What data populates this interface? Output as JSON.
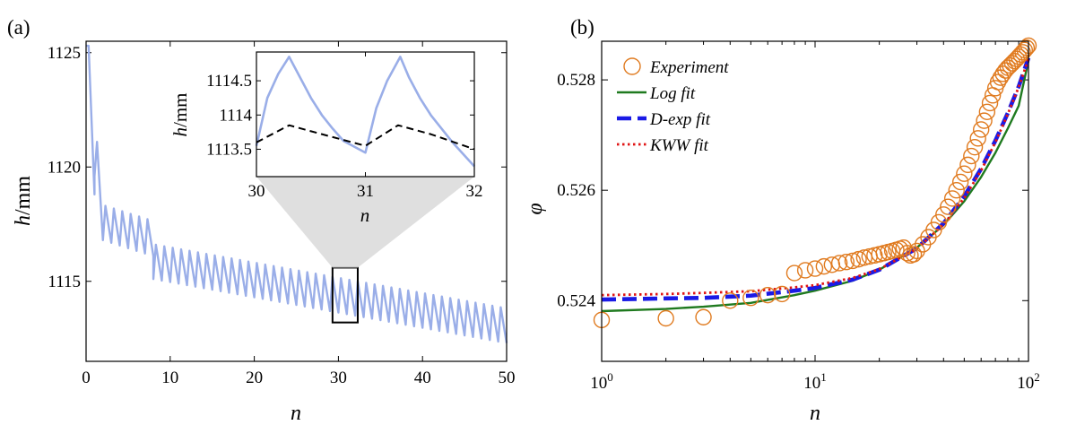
{
  "chart_data": [
    {
      "id": "a",
      "type": "line",
      "panel_label": "(a)",
      "xlabel": "n",
      "ylabel_var": "h",
      "ylabel_unit": "/mm",
      "xlim": [
        0,
        50
      ],
      "ylim": [
        1111.5,
        1125.5
      ],
      "xticks": [
        0,
        10,
        20,
        30,
        40,
        50
      ],
      "xtick_labels": [
        "0",
        "10",
        "20",
        "30",
        "40",
        "50"
      ],
      "yticks": [
        1115,
        1120,
        1125
      ],
      "ytick_labels": [
        "1115",
        "1120",
        "1125"
      ],
      "series": [
        {
          "name": "h",
          "color": "#9aaee8",
          "segments": [
            {
              "n_start": 0,
              "n_end": 1,
              "h_start": 1125.3,
              "h_end": 1118.8
            },
            {
              "n_start": 1,
              "n_end": 2,
              "h_start": 1119.6,
              "h_end": 1116.8
            },
            {
              "n_start": 2,
              "n_end": 8,
              "h_start": 1116.8,
              "h_end": 1116.1
            },
            {
              "n_start": 8,
              "n_end": 50,
              "h_start": 1115.1,
              "h_end": 1112.3
            }
          ],
          "oscillation_amplitude": 1.5,
          "oscillation_period": 1
        }
      ],
      "highlight_box": {
        "x": [
          29.3,
          32.3
        ],
        "y": [
          1113.2,
          1115.6
        ]
      },
      "inset": {
        "xlim": [
          30,
          32
        ],
        "ylim": [
          1113.1,
          1114.92
        ],
        "xticks": [
          30,
          31,
          32
        ],
        "xtick_labels": [
          "30",
          "31",
          "32"
        ],
        "yticks": [
          1113.5,
          1114,
          1114.5
        ],
        "ytick_labels": [
          "1113.5",
          "1114",
          "1114.5"
        ],
        "xlabel": "n",
        "ylabel_var": "h",
        "ylabel_unit": "/mm",
        "series": [
          {
            "name": "h",
            "color": "#9aaee8",
            "style": "solid",
            "points": [
              [
                30,
                1113.55
              ],
              [
                30.1,
                1114.25
              ],
              [
                30.2,
                1114.6
              ],
              [
                30.3,
                1114.85
              ],
              [
                30.4,
                1114.55
              ],
              [
                30.5,
                1114.25
              ],
              [
                30.6,
                1114.0
              ],
              [
                30.7,
                1113.8
              ],
              [
                30.8,
                1113.62
              ],
              [
                31.0,
                1113.45
              ],
              [
                31.1,
                1114.1
              ],
              [
                31.2,
                1114.5
              ],
              [
                31.32,
                1114.85
              ],
              [
                31.4,
                1114.55
              ],
              [
                31.5,
                1114.25
              ],
              [
                31.6,
                1114.0
              ],
              [
                31.7,
                1113.8
              ],
              [
                31.8,
                1113.6
              ],
              [
                32.0,
                1113.25
              ]
            ]
          },
          {
            "name": "mean",
            "color": "#000000",
            "style": "dashed",
            "points": [
              [
                30,
                1113.6
              ],
              [
                30.3,
                1113.85
              ],
              [
                30.6,
                1113.72
              ],
              [
                31.0,
                1113.55
              ],
              [
                31.3,
                1113.85
              ],
              [
                31.6,
                1113.72
              ],
              [
                32.0,
                1113.5
              ]
            ]
          }
        ]
      }
    },
    {
      "id": "b",
      "type": "scatter",
      "panel_label": "(b)",
      "xlabel": "n",
      "ylabel": "φ",
      "xscale": "log",
      "xlim": [
        1,
        100
      ],
      "ylim": [
        0.5229,
        0.5287
      ],
      "xticks": [
        1,
        10,
        100
      ],
      "xtick_labels": [
        {
          "base": "10",
          "exp": "0"
        },
        {
          "base": "10",
          "exp": "1"
        },
        {
          "base": "10",
          "exp": "2"
        }
      ],
      "yticks": [
        0.524,
        0.526,
        0.528
      ],
      "ytick_labels": [
        "0.524",
        "0.526",
        "0.528"
      ],
      "experiment": {
        "name": "Experiment",
        "color": "#e07b20",
        "n_min": 1,
        "n_max": 100,
        "points": [
          [
            1,
            0.52365
          ],
          [
            2,
            0.52368
          ],
          [
            3,
            0.5237
          ],
          [
            4,
            0.524
          ],
          [
            5,
            0.52405
          ],
          [
            6,
            0.5241
          ],
          [
            7,
            0.52412
          ],
          [
            8,
            0.5245
          ],
          [
            9,
            0.52455
          ],
          [
            10,
            0.52458
          ],
          [
            11,
            0.52462
          ],
          [
            12,
            0.52465
          ],
          [
            13,
            0.52468
          ],
          [
            14,
            0.5247
          ],
          [
            15,
            0.52472
          ],
          [
            16,
            0.52475
          ],
          [
            17,
            0.52478
          ],
          [
            18,
            0.5248
          ],
          [
            19,
            0.52482
          ],
          [
            20,
            0.52484
          ],
          [
            21,
            0.52486
          ],
          [
            22,
            0.52488
          ],
          [
            23,
            0.5249
          ],
          [
            24,
            0.52492
          ],
          [
            25,
            0.52494
          ],
          [
            26,
            0.52496
          ],
          [
            27,
            0.52486
          ],
          [
            28,
            0.52482
          ],
          [
            29,
            0.52484
          ],
          [
            30,
            0.5249
          ],
          [
            32,
            0.52502
          ],
          [
            34,
            0.52515
          ],
          [
            36,
            0.52528
          ],
          [
            38,
            0.52542
          ],
          [
            40,
            0.52556
          ],
          [
            42,
            0.5257
          ],
          [
            44,
            0.52585
          ],
          [
            46,
            0.526
          ],
          [
            48,
            0.52615
          ],
          [
            50,
            0.5263
          ],
          [
            52,
            0.52646
          ],
          [
            54,
            0.52662
          ],
          [
            56,
            0.52678
          ],
          [
            58,
            0.52694
          ],
          [
            60,
            0.5271
          ],
          [
            62,
            0.52726
          ],
          [
            64,
            0.52742
          ],
          [
            66,
            0.52758
          ],
          [
            68,
            0.52772
          ],
          [
            70,
            0.52785
          ],
          [
            72,
            0.52796
          ],
          [
            74,
            0.52804
          ],
          [
            76,
            0.52811
          ],
          [
            78,
            0.52817
          ],
          [
            80,
            0.52822
          ],
          [
            82,
            0.52826
          ],
          [
            84,
            0.5283
          ],
          [
            86,
            0.52834
          ],
          [
            88,
            0.52838
          ],
          [
            90,
            0.52842
          ],
          [
            92,
            0.52846
          ],
          [
            94,
            0.5285
          ],
          [
            96,
            0.52854
          ],
          [
            98,
            0.52858
          ],
          [
            100,
            0.52862
          ]
        ]
      },
      "fits": [
        {
          "name": "Log fit",
          "color": "#1f7a1f",
          "style": "solid",
          "points": [
            [
              1,
              0.52381
            ],
            [
              2,
              0.52385
            ],
            [
              3,
              0.52389
            ],
            [
              5,
              0.52396
            ],
            [
              8,
              0.5241
            ],
            [
              10,
              0.52418
            ],
            [
              15,
              0.52436
            ],
            [
              20,
              0.52456
            ],
            [
              30,
              0.52496
            ],
            [
              40,
              0.52537
            ],
            [
              50,
              0.5258
            ],
            [
              60,
              0.52624
            ],
            [
              70,
              0.52668
            ],
            [
              80,
              0.52712
            ],
            [
              90,
              0.52753
            ],
            [
              100,
              0.52835
            ]
          ]
        },
        {
          "name": "D-exp fit",
          "color": "#1a1ae6",
          "style": "dashed",
          "points": [
            [
              1,
              0.52402
            ],
            [
              2,
              0.52404
            ],
            [
              3,
              0.52405
            ],
            [
              5,
              0.52409
            ],
            [
              8,
              0.52418
            ],
            [
              10,
              0.52423
            ],
            [
              15,
              0.52438
            ],
            [
              20,
              0.52456
            ],
            [
              30,
              0.52495
            ],
            [
              40,
              0.5254
            ],
            [
              50,
              0.52589
            ],
            [
              60,
              0.52639
            ],
            [
              70,
              0.5269
            ],
            [
              80,
              0.5274
            ],
            [
              90,
              0.52788
            ],
            [
              100,
              0.5284
            ]
          ]
        },
        {
          "name": "KWW fit",
          "color": "#e01515",
          "style": "dotted",
          "points": [
            [
              1,
              0.5241
            ],
            [
              2,
              0.52412
            ],
            [
              3,
              0.52414
            ],
            [
              5,
              0.52417
            ],
            [
              8,
              0.52424
            ],
            [
              10,
              0.52428
            ],
            [
              15,
              0.52441
            ],
            [
              20,
              0.52457
            ],
            [
              30,
              0.52494
            ],
            [
              40,
              0.52538
            ],
            [
              50,
              0.52586
            ],
            [
              60,
              0.52636
            ],
            [
              70,
              0.52687
            ],
            [
              80,
              0.52738
            ],
            [
              90,
              0.52787
            ],
            [
              100,
              0.52838
            ]
          ]
        }
      ],
      "legend": {
        "placement": "top-left",
        "entries": [
          "Experiment",
          "Log fit",
          "D-exp fit",
          "KWW fit"
        ]
      }
    }
  ]
}
